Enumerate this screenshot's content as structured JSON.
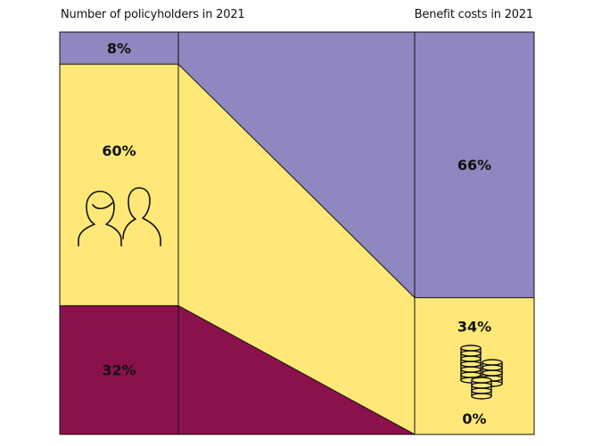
{
  "chart_data": {
    "type": "area",
    "left_title": "Number of policyholders in 2021",
    "right_title": "Benefit costs in 2021",
    "segments": [
      {
        "key": "top",
        "color": "#8f87bf",
        "left_value": 8,
        "right_value": 66,
        "left_label": "8%",
        "right_label": "66%"
      },
      {
        "key": "middle",
        "color": "#ffe878",
        "left_value": 60,
        "right_value": 34,
        "left_label": "60%",
        "right_label": "34%"
      },
      {
        "key": "bottom",
        "color": "#8a124c",
        "left_value": 32,
        "right_value": 0,
        "left_label": "32%",
        "right_label": "0%"
      }
    ],
    "left_icon": "people-icon",
    "right_icon": "coins-icon"
  }
}
